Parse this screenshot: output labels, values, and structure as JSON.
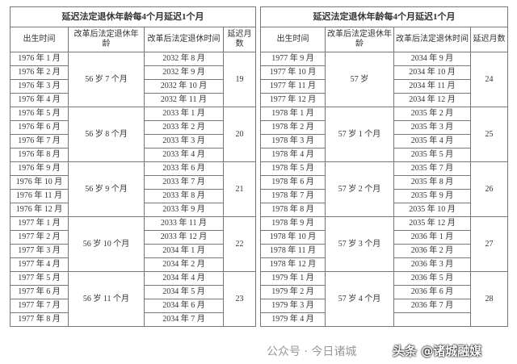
{
  "title": "延迟法定退休年龄每4个月延迟1个月",
  "headers": [
    "出生时间",
    "改革后法定退休年龄",
    "改革后法定退休时间",
    "延迟月数"
  ],
  "tables": [
    {
      "groups": [
        {
          "births": [
            "1976 年 1 月",
            "1976 年 2 月",
            "1976 年 3 月",
            "1976 年 4 月"
          ],
          "age": "56 岁 7 个月",
          "times": [
            "2032 年 8 月",
            "2032 年 9 月",
            "2032 年 10 月",
            "2032 年 11 月"
          ],
          "months": "19"
        },
        {
          "births": [
            "1976 年 5 月",
            "1976 年 6 月",
            "1976 年 7 月",
            "1976 年 8 月"
          ],
          "age": "56 岁 8 个月",
          "times": [
            "2033 年 1 月",
            "2033 年 2 月",
            "2033 年 3 月",
            "2033 年 4 月"
          ],
          "months": "20"
        },
        {
          "births": [
            "1976 年 9 月",
            "1976 年 10 月",
            "1976 年 11 月",
            "1976 年 12 月"
          ],
          "age": "56 岁 9 个月",
          "times": [
            "2033 年 6 月",
            "2033 年 7 月",
            "2033 年 8 月",
            "2033 年 9 月"
          ],
          "months": "21"
        },
        {
          "births": [
            "1977 年 1 月",
            "1977 年 2 月",
            "1977 年 3 月",
            "1977 年 4 月"
          ],
          "age": "56 岁 10 个月",
          "times": [
            "2033 年 11 月",
            "2033 年 12 月",
            "2034 年 1 月",
            "2034 年 2 月"
          ],
          "months": "22"
        },
        {
          "births": [
            "1977 年 5 月",
            "1977 年 6 月",
            "1977 年 7 月",
            "1977 年 8 月"
          ],
          "age": "56 岁 11 个月",
          "times": [
            "2034 年 4 月",
            "2034 年 5 月",
            "2034 年 6 月",
            "2034 年 7 月"
          ],
          "months": "23"
        }
      ]
    },
    {
      "groups": [
        {
          "births": [
            "1977 年 9 月",
            "1977 年 10 月",
            "1977 年 11 月",
            "1977 年 12 月"
          ],
          "age": "57 岁",
          "times": [
            "2034 年 9 月",
            "2034 年 10 月",
            "2034 年 11 月",
            "2034 年 12 月"
          ],
          "months": "24"
        },
        {
          "births": [
            "1978 年 1 月",
            "1978 年 2 月",
            "1978 年 3 月",
            "1978 年 4 月"
          ],
          "age": "57 岁 1 个月",
          "times": [
            "2035 年 2 月",
            "2035 年 3 月",
            "2035 年 4 月",
            "2035 年 5 月"
          ],
          "months": "25"
        },
        {
          "births": [
            "1978 年 5 月",
            "1978 年 6 月",
            "1978 年 7 月",
            "1978 年 8 月"
          ],
          "age": "57 岁 2 个月",
          "times": [
            "2035 年 7 月",
            "2035 年 8 月",
            "2035 年 9 月",
            "2035 年 10 月"
          ],
          "months": "26"
        },
        {
          "births": [
            "1978 年 9 月",
            "1978 年 10 月",
            "1978 年 11 月",
            "1978 年 12 月"
          ],
          "age": "57 岁 3 个月",
          "times": [
            "2035 年 12 月",
            "2036 年 1 月",
            "2036 年 2 月",
            "2036 年 3 月"
          ],
          "months": "27"
        },
        {
          "births": [
            "1979 年 1 月",
            "1979 年 2 月",
            "1979 年 3 月",
            "1979 年 4 月"
          ],
          "age": "57 岁 4 个月",
          "times": [
            "2036 年 5 月",
            "2036 年 6 月",
            "2036 年 7 月",
            ""
          ],
          "months": "28"
        }
      ]
    }
  ],
  "watermark": {
    "wechat": "公众号 · 今日诸城",
    "toutiao": "头条 @诸城融媒"
  }
}
